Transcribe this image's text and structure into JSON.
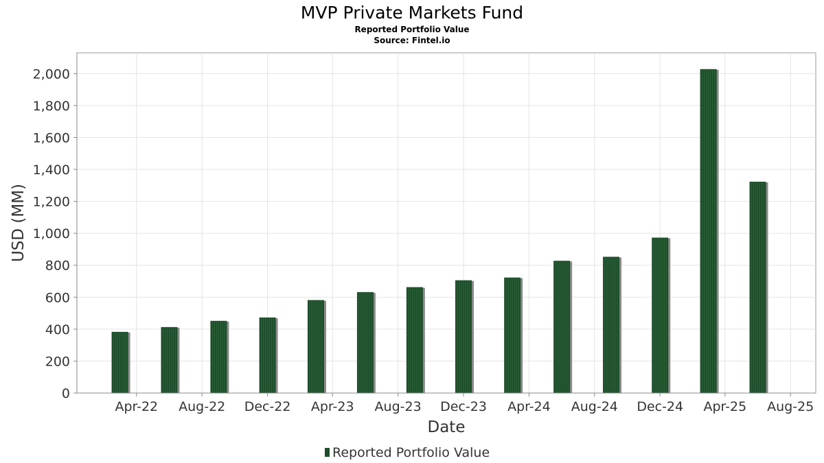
{
  "chart_data": {
    "type": "bar",
    "title": "MVP Private Markets Fund",
    "subtitle_lines": [
      "Reported Portfolio Value",
      "Source: Fintel.io"
    ],
    "xlabel": "Date",
    "ylabel": "USD (MM)",
    "ylim": [
      0,
      2130
    ],
    "y_ticks": [
      0,
      200,
      400,
      600,
      800,
      1000,
      1200,
      1400,
      1600,
      1800,
      2000
    ],
    "y_tick_labels": [
      "0",
      "200",
      "400",
      "600",
      "800",
      "1,000",
      "1,200",
      "1,400",
      "1,600",
      "1,800",
      "2,000"
    ],
    "xlim": [
      "2021-12-11",
      "2025-09-17"
    ],
    "x_ticks": [
      "2022-04-01",
      "2022-08-01",
      "2022-12-01",
      "2023-04-01",
      "2023-08-01",
      "2023-12-01",
      "2024-04-01",
      "2024-08-01",
      "2024-12-01",
      "2025-04-01",
      "2025-08-01"
    ],
    "x_tick_labels": [
      "Apr-22",
      "Aug-22",
      "Dec-22",
      "Apr-23",
      "Aug-23",
      "Dec-23",
      "Apr-24",
      "Aug-24",
      "Dec-24",
      "Apr-25",
      "Aug-25"
    ],
    "grid": true,
    "legend_position": "bottom-center",
    "series": [
      {
        "name": "Reported Portfolio Value",
        "color": "#1e4d2b",
        "x": [
          "2022-03-01",
          "2022-06-01",
          "2022-09-01",
          "2022-12-01",
          "2023-03-01",
          "2023-06-01",
          "2023-09-01",
          "2023-12-01",
          "2024-03-01",
          "2024-06-01",
          "2024-09-01",
          "2024-12-01",
          "2025-03-01",
          "2025-06-01"
        ],
        "values": [
          383,
          413,
          452,
          473,
          582,
          632,
          663,
          706,
          723,
          828,
          853,
          973,
          2028,
          1323
        ]
      }
    ]
  }
}
